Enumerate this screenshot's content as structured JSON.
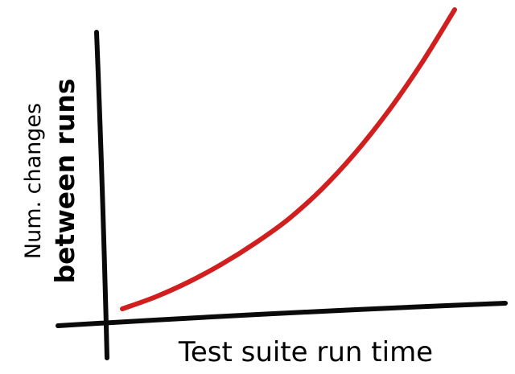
{
  "chart_data": {
    "type": "line",
    "title": "",
    "xlabel": "Test suite run time",
    "ylabel": [
      "Num. changes",
      "between runs"
    ],
    "grid": false,
    "legend": "none",
    "ticks": false,
    "curve_color": "#d11f1f",
    "axis_color": "#0a0a0a",
    "series": [
      {
        "shape": "exponential growth",
        "x": [
          0,
          0.1,
          0.2,
          0.3,
          0.4,
          0.5,
          0.6,
          0.7,
          0.8,
          0.9,
          1.0
        ],
        "y": [
          0,
          0.04,
          0.09,
          0.15,
          0.22,
          0.3,
          0.4,
          0.52,
          0.66,
          0.82,
          1.0
        ]
      }
    ]
  }
}
